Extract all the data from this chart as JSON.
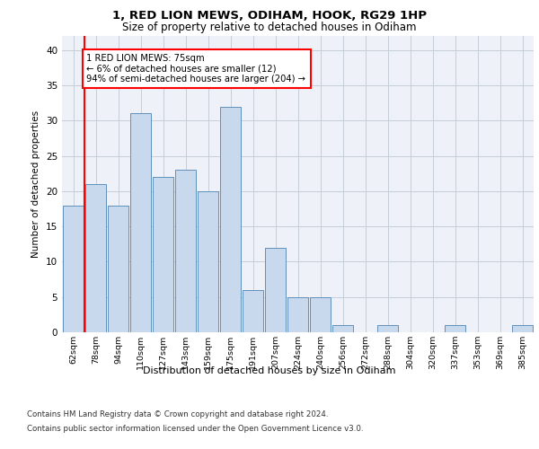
{
  "title": "1, RED LION MEWS, ODIHAM, HOOK, RG29 1HP",
  "subtitle": "Size of property relative to detached houses in Odiham",
  "xlabel": "Distribution of detached houses by size in Odiham",
  "ylabel": "Number of detached properties",
  "bar_color": "#c8d9ee",
  "bar_edge_color": "#6090bb",
  "categories": [
    "62sqm",
    "78sqm",
    "94sqm",
    "110sqm",
    "127sqm",
    "143sqm",
    "159sqm",
    "175sqm",
    "191sqm",
    "207sqm",
    "224sqm",
    "240sqm",
    "256sqm",
    "272sqm",
    "288sqm",
    "304sqm",
    "320sqm",
    "337sqm",
    "353sqm",
    "369sqm",
    "385sqm"
  ],
  "values": [
    18,
    21,
    18,
    31,
    22,
    23,
    20,
    32,
    6,
    12,
    5,
    5,
    1,
    0,
    1,
    0,
    0,
    1,
    0,
    0,
    1
  ],
  "ylim": [
    0,
    42
  ],
  "yticks": [
    0,
    5,
    10,
    15,
    20,
    25,
    30,
    35,
    40
  ],
  "annotation_text": "1 RED LION MEWS: 75sqm\n← 6% of detached houses are smaller (12)\n94% of semi-detached houses are larger (204) →",
  "annotation_box_color": "white",
  "annotation_box_edge_color": "red",
  "marker_line_color": "red",
  "bg_color": "#eef2f8",
  "grid_color": "#c5cdd8",
  "footer_line1": "Contains HM Land Registry data © Crown copyright and database right 2024.",
  "footer_line2": "Contains public sector information licensed under the Open Government Licence v3.0."
}
